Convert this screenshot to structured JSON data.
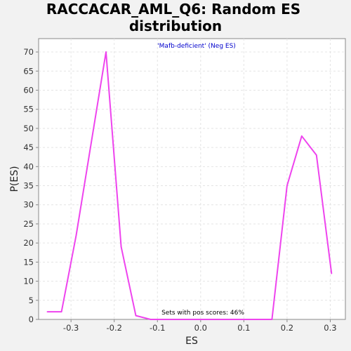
{
  "chart_data": {
    "type": "line",
    "title": "RACCACAR_AML_Q6: Random ES distribution",
    "title_lines": [
      "RACCACAR_AML_Q6: Random ES",
      "distribution"
    ],
    "subtitle": "'Mafb-deficient' (Neg ES)",
    "annotation": "Sets with pos scores: 46%",
    "xlabel": "ES",
    "ylabel": "P(ES)",
    "xlim": [
      -0.375,
      0.335
    ],
    "ylim": [
      0,
      73.5
    ],
    "x_ticks": [
      -0.3,
      -0.2,
      -0.1,
      0.0,
      0.1,
      0.2,
      0.3
    ],
    "x_tick_labels": [
      "-0.3",
      "-0.2",
      "-0.1",
      "0.0",
      "0.1",
      "0.2",
      "0.3"
    ],
    "y_ticks": [
      0,
      5,
      10,
      15,
      20,
      25,
      30,
      35,
      40,
      45,
      50,
      55,
      60,
      65,
      70
    ],
    "y_tick_labels": [
      "0",
      "5",
      "10",
      "15",
      "20",
      "25",
      "30",
      "35",
      "40",
      "45",
      "50",
      "55",
      "60",
      "65",
      "70"
    ],
    "grid": true,
    "series": [
      {
        "color": "#ee44ee",
        "x": [
          -0.355,
          -0.322,
          -0.288,
          -0.219,
          -0.184,
          -0.15,
          -0.116,
          -0.082,
          -0.048,
          0.131,
          0.165,
          0.2,
          0.234,
          0.268,
          0.303
        ],
        "y": [
          2,
          2,
          22,
          70,
          19,
          1,
          0,
          0,
          0,
          0,
          0,
          35,
          48,
          43,
          12
        ]
      }
    ]
  }
}
